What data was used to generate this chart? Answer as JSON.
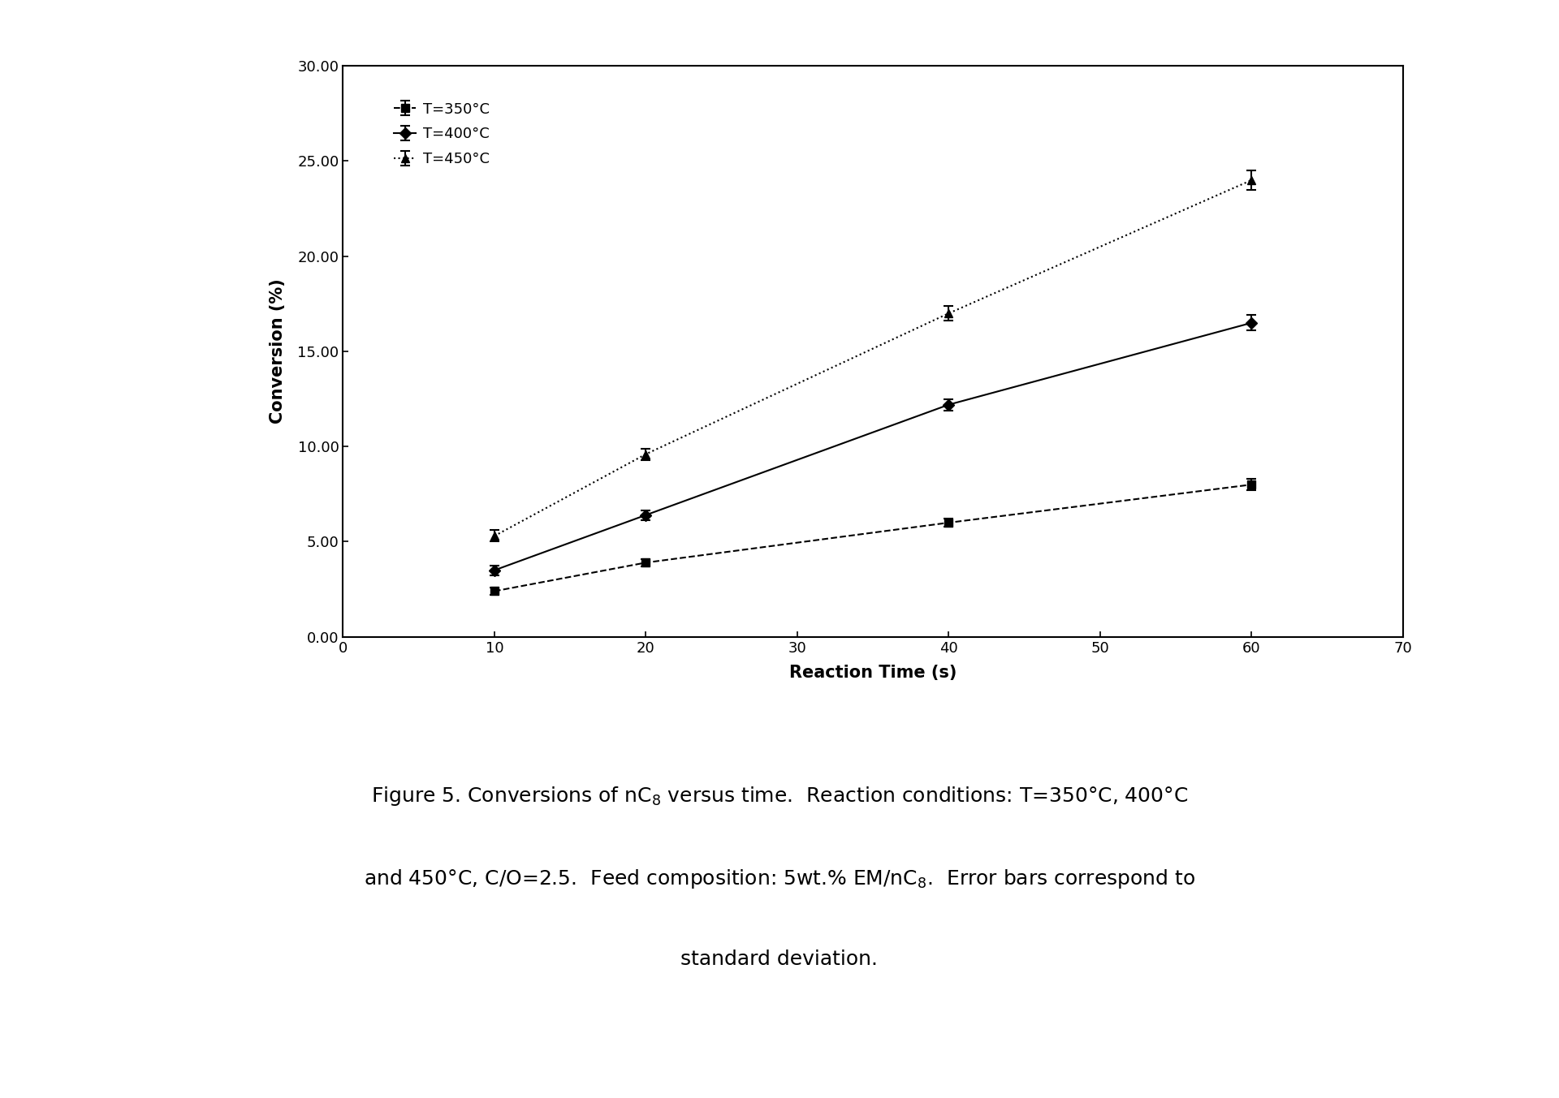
{
  "series": [
    {
      "label": "T=350°C",
      "marker": "s",
      "linestyle": "--",
      "x": [
        10,
        20,
        40,
        60
      ],
      "y": [
        2.4,
        3.9,
        6.0,
        8.0
      ],
      "yerr": [
        0.2,
        0.2,
        0.2,
        0.3
      ]
    },
    {
      "label": "T=400°C",
      "marker": "D",
      "linestyle": "-",
      "x": [
        10,
        20,
        40,
        60
      ],
      "y": [
        3.5,
        6.4,
        12.2,
        16.5
      ],
      "yerr": [
        0.25,
        0.25,
        0.3,
        0.4
      ]
    },
    {
      "label": "T=450°C",
      "marker": "^",
      "linestyle": ":",
      "x": [
        10,
        20,
        40,
        60
      ],
      "y": [
        5.3,
        9.6,
        17.0,
        24.0
      ],
      "yerr": [
        0.3,
        0.3,
        0.4,
        0.5
      ]
    }
  ],
  "xlabel": "Reaction Time (s)",
  "ylabel": "Conversion (%)",
  "xlim": [
    0,
    70
  ],
  "ylim": [
    0,
    30
  ],
  "xticks": [
    0,
    10,
    20,
    30,
    40,
    50,
    60,
    70
  ],
  "yticks": [
    0.0,
    5.0,
    10.0,
    15.0,
    20.0,
    25.0,
    30.0
  ],
  "caption_line1": "Figure 5. Conversions of nC$_8$ versus time.  Reaction conditions: T=350°C, 400°C",
  "caption_line2": "and 450°C, C/O=2.5.  Feed composition: 5wt.% EM/nC$_8$.  Error bars correspond to",
  "caption_line3": "standard deviation."
}
